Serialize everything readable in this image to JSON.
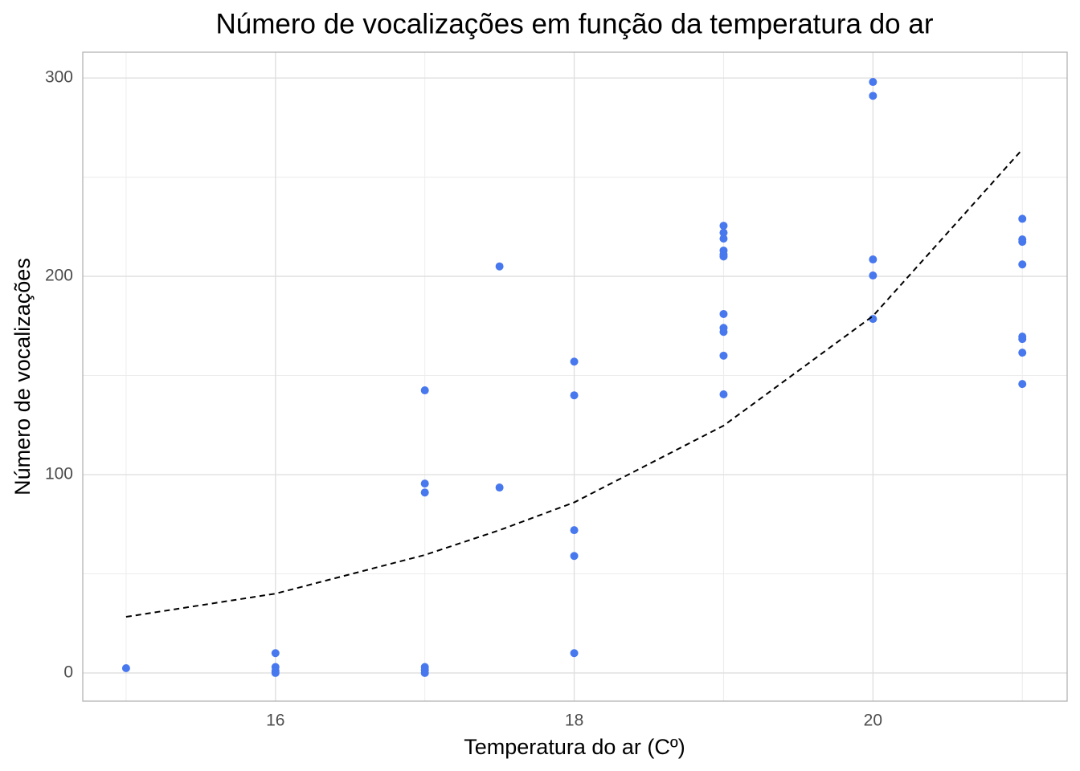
{
  "chart_data": {
    "type": "scatter",
    "title": "Número de vocalizações em função da temperatura do ar",
    "x_label": "Temperatura do ar (Cº)",
    "y_label": "Número de vocalizações",
    "xlim": [
      14.71,
      21.3
    ],
    "ylim": [
      -14.2,
      313
    ],
    "xticks": [
      16,
      18,
      20
    ],
    "yticks": [
      0,
      100,
      200,
      300
    ],
    "grid": true,
    "minor_grid": true,
    "series": [
      {
        "mode": "points",
        "color": "#4878ee",
        "x": [
          15,
          16,
          16,
          16,
          16,
          17,
          17,
          17,
          17,
          17,
          17,
          17.5,
          17.5,
          18,
          18,
          18,
          18,
          18,
          19,
          19,
          19,
          19,
          19,
          19,
          19,
          19,
          19,
          19,
          19,
          20,
          20,
          20,
          20,
          20,
          21,
          21,
          21,
          21,
          21,
          21,
          21,
          21
        ],
        "values": [
          2.4,
          10,
          3,
          1,
          0,
          142.5,
          95.5,
          91,
          3,
          1.6,
          0,
          205,
          93.5,
          157,
          140,
          72,
          59,
          10,
          225.5,
          222,
          219,
          213,
          211,
          210,
          181,
          174,
          172,
          160,
          140.5,
          298,
          291,
          208.5,
          200.4,
          178.5,
          229,
          218.6,
          217.4,
          206,
          169.6,
          168.4,
          161.5,
          145.7
        ]
      },
      {
        "mode": "line",
        "color": "#000000",
        "dashed": true,
        "x": [
          15,
          16,
          17,
          17.5,
          18,
          19,
          20,
          21
        ],
        "values": [
          28.3,
          40,
          59.5,
          72,
          86,
          124.7,
          180,
          264
        ]
      }
    ]
  }
}
